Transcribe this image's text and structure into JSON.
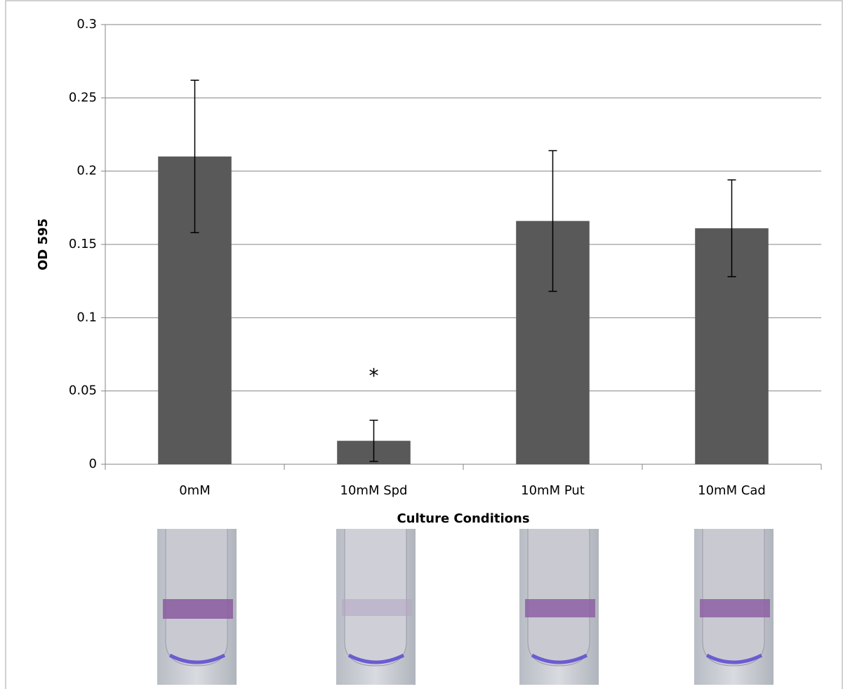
{
  "chart_data": {
    "type": "bar",
    "y_label": "OD 595",
    "x_label": "Culture Conditions",
    "categories": [
      "0mM",
      "10mM Spd",
      "10mM Put",
      "10mM Cad"
    ],
    "values": [
      0.21,
      0.016,
      0.166,
      0.161
    ],
    "errors": [
      0.052,
      0.014,
      0.048,
      0.033
    ],
    "color": "#595959",
    "ylim": [
      0,
      0.3
    ],
    "yticks": [
      0,
      0.05,
      0.1,
      0.15,
      0.2,
      0.25,
      0.3
    ],
    "grid": true,
    "annotations": [
      {
        "text": "*",
        "category": "10mM Spd"
      }
    ]
  }
}
